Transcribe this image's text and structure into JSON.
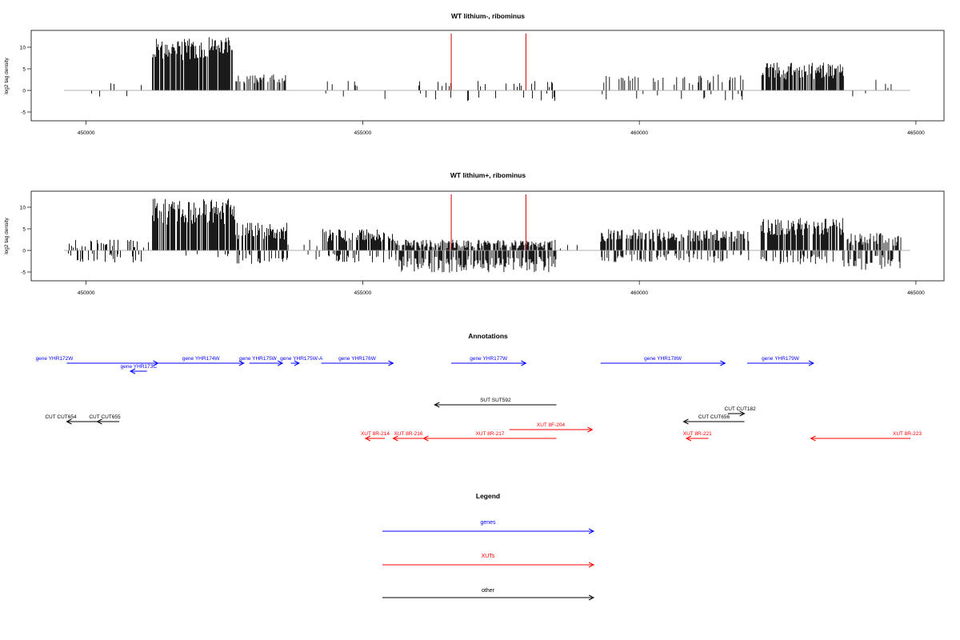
{
  "colors": {
    "gene": "#0000ff",
    "xut": "#ff0000",
    "other": "#000000",
    "marker": "#cc0000",
    "bars": "#000000",
    "baseline": "#999999"
  },
  "annotations_title": "Annotations",
  "legend": {
    "title": "Legend",
    "items": [
      {
        "label": "genes",
        "color": "#0000ff"
      },
      {
        "label": "XUTs",
        "color": "#ff0000"
      },
      {
        "label": "other",
        "color": "#000000"
      }
    ]
  },
  "chart_data": [
    {
      "type": "bar",
      "title": "WT lithium-, ribominus",
      "xlabel": "",
      "ylabel": "log2 tag density",
      "xlim": [
        449600,
        464900
      ],
      "ylim": [
        -7,
        14
      ],
      "xticks": [
        450000,
        455000,
        460000,
        465000
      ],
      "yticks": [
        -5,
        0,
        5,
        10
      ],
      "markers": [
        456600,
        457950
      ],
      "regions": [
        {
          "start": 449650,
          "end": 450100,
          "mean": 2.0,
          "amp": 1.2,
          "neg": 0.25,
          "negmean": 1.0,
          "density": 0.06
        },
        {
          "start": 450100,
          "end": 451100,
          "mean": 2.0,
          "amp": 1.0,
          "neg": 0.3,
          "negmean": 1.2,
          "density": 0.06
        },
        {
          "start": 451200,
          "end": 451400,
          "mean": 9.0,
          "amp": 3.0,
          "neg": 0.0,
          "negmean": 0.0,
          "density": 0.9
        },
        {
          "start": 451420,
          "end": 451700,
          "mean": 9.5,
          "amp": 2.0,
          "neg": 0.0,
          "negmean": 0.0,
          "density": 0.9
        },
        {
          "start": 451720,
          "end": 452100,
          "mean": 9.5,
          "amp": 2.5,
          "neg": 0.0,
          "negmean": 0.0,
          "density": 0.9
        },
        {
          "start": 452120,
          "end": 452650,
          "mean": 10.0,
          "amp": 2.5,
          "neg": 0.0,
          "negmean": 0.0,
          "density": 0.9
        },
        {
          "start": 452650,
          "end": 453650,
          "mean": 2.5,
          "amp": 1.2,
          "neg": 0.0,
          "negmean": 0.0,
          "density": 0.5
        },
        {
          "start": 454100,
          "end": 455600,
          "mean": 2.0,
          "amp": 1.0,
          "neg": 0.35,
          "negmean": 1.8,
          "density": 0.06
        },
        {
          "start": 456000,
          "end": 458500,
          "mean": 1.5,
          "amp": 0.8,
          "neg": 0.7,
          "negmean": 1.6,
          "density": 0.08
        },
        {
          "start": 459300,
          "end": 462000,
          "mean": 2.5,
          "amp": 1.2,
          "neg": 0.3,
          "negmean": 1.5,
          "density": 0.18
        },
        {
          "start": 462200,
          "end": 463700,
          "mean": 4.5,
          "amp": 2.0,
          "neg": 0.0,
          "negmean": 0.0,
          "density": 0.75
        },
        {
          "start": 463800,
          "end": 464750,
          "mean": 1.5,
          "amp": 1.0,
          "neg": 0.6,
          "negmean": 1.2,
          "density": 0.06
        }
      ]
    },
    {
      "type": "bar",
      "title": "WT lithium+, ribominus",
      "xlabel": "",
      "ylabel": "log2 tag density",
      "xlim": [
        449600,
        464900
      ],
      "ylim": [
        -7,
        14
      ],
      "xticks": [
        450000,
        455000,
        460000,
        465000
      ],
      "yticks": [
        -5,
        0,
        5,
        10
      ],
      "markers": [
        456600,
        457950
      ],
      "regions": [
        {
          "start": 449650,
          "end": 451150,
          "mean": 1.5,
          "amp": 1.0,
          "neg": 0.6,
          "negmean": 1.8,
          "density": 0.3
        },
        {
          "start": 451200,
          "end": 452700,
          "mean": 9.0,
          "amp": 3.0,
          "neg": 0.1,
          "negmean": 1.0,
          "density": 0.9
        },
        {
          "start": 452700,
          "end": 453650,
          "mean": 4.5,
          "amp": 2.0,
          "neg": 0.35,
          "negmean": 2.0,
          "density": 0.8
        },
        {
          "start": 453650,
          "end": 454250,
          "mean": 1.5,
          "amp": 1.0,
          "neg": 0.4,
          "negmean": 1.5,
          "density": 0.15
        },
        {
          "start": 454250,
          "end": 455600,
          "mean": 3.5,
          "amp": 1.5,
          "neg": 0.4,
          "negmean": 1.8,
          "density": 0.7
        },
        {
          "start": 455600,
          "end": 458500,
          "mean": 1.5,
          "amp": 1.0,
          "neg": 0.85,
          "negmean": 3.2,
          "density": 0.75
        },
        {
          "start": 458500,
          "end": 459000,
          "mean": 1.0,
          "amp": 0.8,
          "neg": 0.1,
          "negmean": 1.0,
          "density": 0.08
        },
        {
          "start": 459300,
          "end": 462000,
          "mean": 3.5,
          "amp": 1.5,
          "neg": 0.45,
          "negmean": 1.8,
          "density": 0.65
        },
        {
          "start": 462200,
          "end": 463700,
          "mean": 5.5,
          "amp": 2.0,
          "neg": 0.35,
          "negmean": 2.0,
          "density": 0.85
        },
        {
          "start": 463700,
          "end": 464750,
          "mean": 2.5,
          "amp": 1.5,
          "neg": 0.7,
          "negmean": 2.8,
          "density": 0.6
        }
      ]
    },
    {
      "type": "annotation-track",
      "title": "Annotations",
      "features": [
        {
          "label": "gene YHR172W",
          "type": "gene",
          "start": 449650,
          "end": 451300,
          "strand": "+"
        },
        {
          "label": "gene YHR173C",
          "type": "gene",
          "start": 450800,
          "end": 451100,
          "strand": "-"
        },
        {
          "label": "gene YHR174W",
          "type": "gene",
          "start": 451300,
          "end": 452850,
          "strand": "+"
        },
        {
          "label": "gene YHR175W",
          "type": "gene",
          "start": 452950,
          "end": 453550,
          "strand": "+"
        },
        {
          "label": "gene YHR175W-A",
          "type": "gene",
          "start": 453700,
          "end": 453850,
          "strand": "+"
        },
        {
          "label": "gene YHR176W",
          "type": "gene",
          "start": 454250,
          "end": 455550,
          "strand": "+"
        },
        {
          "label": "gene YHR177W",
          "type": "gene",
          "start": 456600,
          "end": 457950,
          "strand": "+"
        },
        {
          "label": "gene YHR178W",
          "type": "gene",
          "start": 459300,
          "end": 461550,
          "strand": "+"
        },
        {
          "label": "gene YHR179W",
          "type": "gene",
          "start": 461950,
          "end": 463150,
          "strand": "+"
        },
        {
          "label": "SUT SUT592",
          "type": "other",
          "start": 456300,
          "end": 458500,
          "strand": "-"
        },
        {
          "label": "CUT CUT182",
          "type": "other",
          "start": 461600,
          "end": 461900,
          "strand": "+"
        },
        {
          "label": "CUT CUT656",
          "type": "other",
          "start": 460800,
          "end": 461900,
          "strand": "-"
        },
        {
          "label": "CUT CUT654",
          "type": "other",
          "start": 449650,
          "end": 450600,
          "strand": "-"
        },
        {
          "label": "CUT CUT655",
          "type": "other",
          "start": 450200,
          "end": 450450,
          "strand": "-"
        },
        {
          "label": "XUT 8R-214",
          "type": "xut",
          "start": 455050,
          "end": 455400,
          "strand": "-"
        },
        {
          "label": "XUT 8R-216",
          "type": "xut",
          "start": 455550,
          "end": 456100,
          "strand": "-"
        },
        {
          "label": "XUT 8R-217",
          "type": "xut",
          "start": 456100,
          "end": 458500,
          "strand": "-"
        },
        {
          "label": "XUT 8F-204",
          "type": "xut",
          "start": 457650,
          "end": 459150,
          "strand": "+"
        },
        {
          "label": "XUT 8R-221",
          "type": "xut",
          "start": 460850,
          "end": 461250,
          "strand": "-"
        },
        {
          "label": "XUT 8R-223",
          "type": "xut",
          "start": 463100,
          "end": 464900,
          "strand": "-"
        }
      ]
    }
  ]
}
